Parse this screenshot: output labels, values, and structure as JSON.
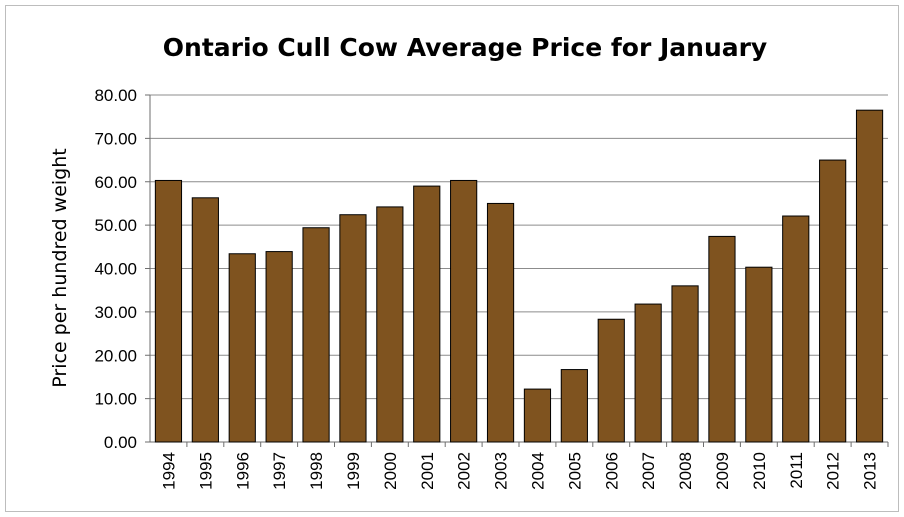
{
  "chart_data": {
    "type": "bar",
    "title": "Ontario Cull Cow Average Price for January",
    "xlabel": "",
    "ylabel": "Price per hundred weight",
    "categories": [
      "1994",
      "1995",
      "1996",
      "1997",
      "1998",
      "1999",
      "2000",
      "2001",
      "2002",
      "2003",
      "2004",
      "2005",
      "2006",
      "2007",
      "2008",
      "2009",
      "2010",
      "2011",
      "2012",
      "2013"
    ],
    "values": [
      60.3,
      56.3,
      43.4,
      43.9,
      49.4,
      52.4,
      54.2,
      59.0,
      60.3,
      55.0,
      12.2,
      16.7,
      28.3,
      31.8,
      36.0,
      47.4,
      40.3,
      52.1,
      65.0,
      76.5
    ],
    "ylim": [
      0,
      80
    ],
    "yticks": [
      "0.00",
      "10.00",
      "20.00",
      "30.00",
      "40.00",
      "50.00",
      "60.00",
      "70.00",
      "80.00"
    ],
    "grid": true,
    "bar_color": "#7f531f"
  }
}
